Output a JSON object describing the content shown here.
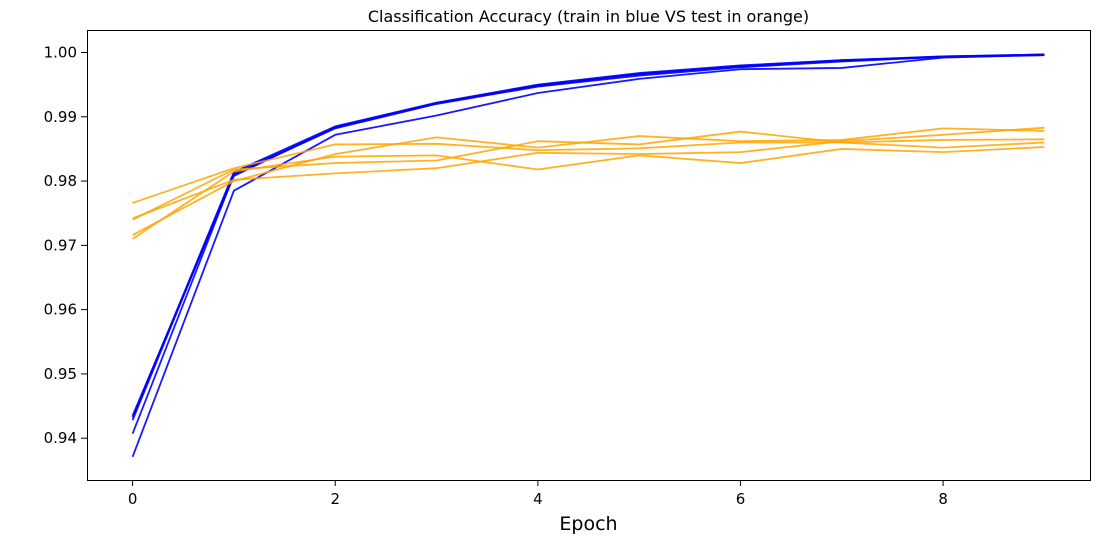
{
  "chart_data": {
    "type": "line",
    "title": "Classification Accuracy (train in blue VS test in orange)",
    "xlabel": "Epoch",
    "ylabel": "",
    "x": [
      0,
      1,
      2,
      3,
      4,
      5,
      6,
      7,
      8,
      9
    ],
    "xlim": [
      -0.45,
      9.45
    ],
    "ylim": [
      0.9335,
      1.0035
    ],
    "xticks": [
      0,
      2,
      4,
      6,
      8
    ],
    "yticks": [
      0.94,
      0.95,
      0.96,
      0.97,
      0.98,
      0.99,
      1.0
    ],
    "ytick_labels": [
      "0.94",
      "0.95",
      "0.96",
      "0.97",
      "0.98",
      "0.99",
      "1.00"
    ],
    "grid": false,
    "colors": {
      "train": "#0000ff",
      "test": "#ffa500"
    },
    "series": [
      {
        "group": "train",
        "values": [
          0.9371,
          0.9785,
          0.9872,
          0.9902,
          0.9937,
          0.9959,
          0.9974,
          0.9976,
          0.9992,
          0.9996
        ]
      },
      {
        "group": "train",
        "values": [
          0.9407,
          0.981,
          0.9882,
          0.992,
          0.9947,
          0.9964,
          0.9977,
          0.9986,
          0.9993,
          0.9997
        ]
      },
      {
        "group": "train",
        "values": [
          0.9428,
          0.9812,
          0.9883,
          0.9921,
          0.9948,
          0.9966,
          0.9979,
          0.9987,
          0.9994,
          0.9996
        ]
      },
      {
        "group": "train",
        "values": [
          0.9432,
          0.9814,
          0.9885,
          0.9922,
          0.995,
          0.9968,
          0.998,
          0.9988,
          0.9994,
          0.9997
        ]
      },
      {
        "group": "train",
        "values": [
          0.9435,
          0.9808,
          0.9884,
          0.9921,
          0.9949,
          0.9967,
          0.9978,
          0.9988,
          0.9993,
          0.9996
        ]
      },
      {
        "group": "test",
        "values": [
          0.9766,
          0.982,
          0.9857,
          0.9858,
          0.9848,
          0.9851,
          0.986,
          0.986,
          0.9864,
          0.9865
        ]
      },
      {
        "group": "test",
        "values": [
          0.974,
          0.9818,
          0.9828,
          0.9832,
          0.9862,
          0.9857,
          0.9877,
          0.986,
          0.9852,
          0.986
        ]
      },
      {
        "group": "test",
        "values": [
          0.9716,
          0.98,
          0.9842,
          0.9868,
          0.9852,
          0.987,
          0.9862,
          0.9864,
          0.9882,
          0.9878
        ]
      },
      {
        "group": "test",
        "values": [
          0.971,
          0.9815,
          0.9838,
          0.984,
          0.9818,
          0.984,
          0.9828,
          0.985,
          0.9845,
          0.9853
        ]
      },
      {
        "group": "test",
        "values": [
          0.9742,
          0.9802,
          0.9812,
          0.982,
          0.9844,
          0.9842,
          0.9845,
          0.9862,
          0.9872,
          0.9883
        ]
      }
    ]
  }
}
